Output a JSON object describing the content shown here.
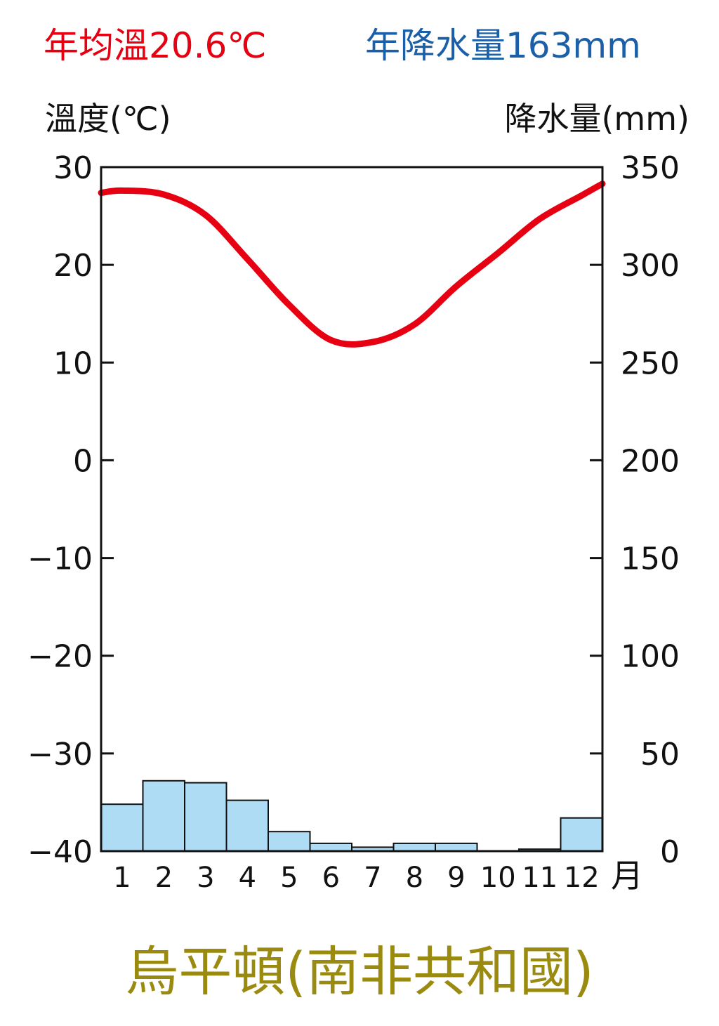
{
  "header": {
    "annual_temp": "年均溫20.6℃",
    "annual_precip": "年降水量163mm",
    "temp_color": "#e60012",
    "precip_color": "#1a5fa8"
  },
  "station": {
    "name": "烏平頓(南非共和國)",
    "color": "#9a8b10"
  },
  "chart_data": {
    "type": "bar+line",
    "categories": [
      "1",
      "2",
      "3",
      "4",
      "5",
      "6",
      "7",
      "8",
      "9",
      "10",
      "11",
      "12"
    ],
    "x_unit_label": "月",
    "temperature": {
      "axis_label": "溫度(℃)",
      "values": [
        27.6,
        27.2,
        25.1,
        20.6,
        15.9,
        12.3,
        12.1,
        13.9,
        17.8,
        21.2,
        24.7,
        27.1
      ],
      "ylim": [
        -40,
        30
      ],
      "ticks": [
        "30",
        "20",
        "10",
        "0",
        "−10",
        "−20",
        "−30",
        "−40"
      ],
      "tick_values": [
        30,
        20,
        10,
        0,
        -10,
        -20,
        -30,
        -40
      ],
      "color": "#e60012"
    },
    "precipitation": {
      "axis_label": "降水量(mm)",
      "values": [
        24,
        36,
        35,
        26,
        10,
        4,
        2,
        4,
        4,
        0,
        1,
        17
      ],
      "ylim": [
        0,
        350
      ],
      "ticks": [
        "350",
        "300",
        "250",
        "200",
        "150",
        "100",
        "50",
        "0"
      ],
      "tick_values": [
        350,
        300,
        250,
        200,
        150,
        100,
        50,
        0
      ],
      "color": "#aedcf4"
    },
    "grid": false
  }
}
